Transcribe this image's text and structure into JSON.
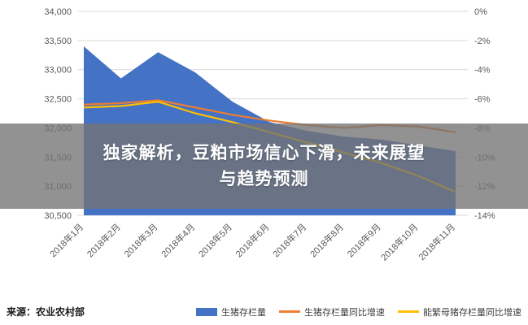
{
  "overlay": {
    "line1": "独家解析，豆粕市场信心下滑，未来展望",
    "line2": "与趋势预测"
  },
  "footer": {
    "source": "来源：农业农村部"
  },
  "chart_data": {
    "type": "combo",
    "title": "",
    "categories": [
      "2018年1月",
      "2018年2月",
      "2018年3月",
      "2018年4月",
      "2018年5月",
      "2018年6月",
      "2018年7月",
      "2018年8月",
      "2018年9月",
      "2018年10月",
      "2018年11月"
    ],
    "series": [
      {
        "name": "生猪存栏量",
        "type": "area",
        "axis": "left",
        "color": "#4472C4",
        "values": [
          33400,
          32850,
          33300,
          32950,
          32450,
          32100,
          31950,
          31850,
          31800,
          31700,
          31600
        ]
      },
      {
        "name": "生猪存栏量同比增速",
        "type": "line",
        "axis": "right",
        "color": "#ED7D31",
        "values": [
          -6.4,
          -6.3,
          -6.1,
          -6.6,
          -7.1,
          -7.5,
          -7.8,
          -8.0,
          -7.8,
          -7.9,
          -8.3
        ]
      },
      {
        "name": "能繁母猪存栏量同比增速",
        "type": "line",
        "axis": "right",
        "color": "#FFC000",
        "values": [
          -6.6,
          -6.5,
          -6.2,
          -7.0,
          -7.6,
          -8.3,
          -9.0,
          -9.7,
          -10.4,
          -11.3,
          -12.4
        ]
      }
    ],
    "left_axis": {
      "min": 30500,
      "max": 34000,
      "ticks": [
        "34,000",
        "33,500",
        "33,000",
        "32,500",
        "32,000",
        "31,500",
        "31,000",
        "30,500"
      ]
    },
    "right_axis": {
      "min": -14,
      "max": 0,
      "ticks": [
        "0%",
        "-2%",
        "-4%",
        "-6%",
        "-8%",
        "-10%",
        "-12%",
        "-14%"
      ]
    },
    "grid": true,
    "legend_position": "bottom"
  }
}
